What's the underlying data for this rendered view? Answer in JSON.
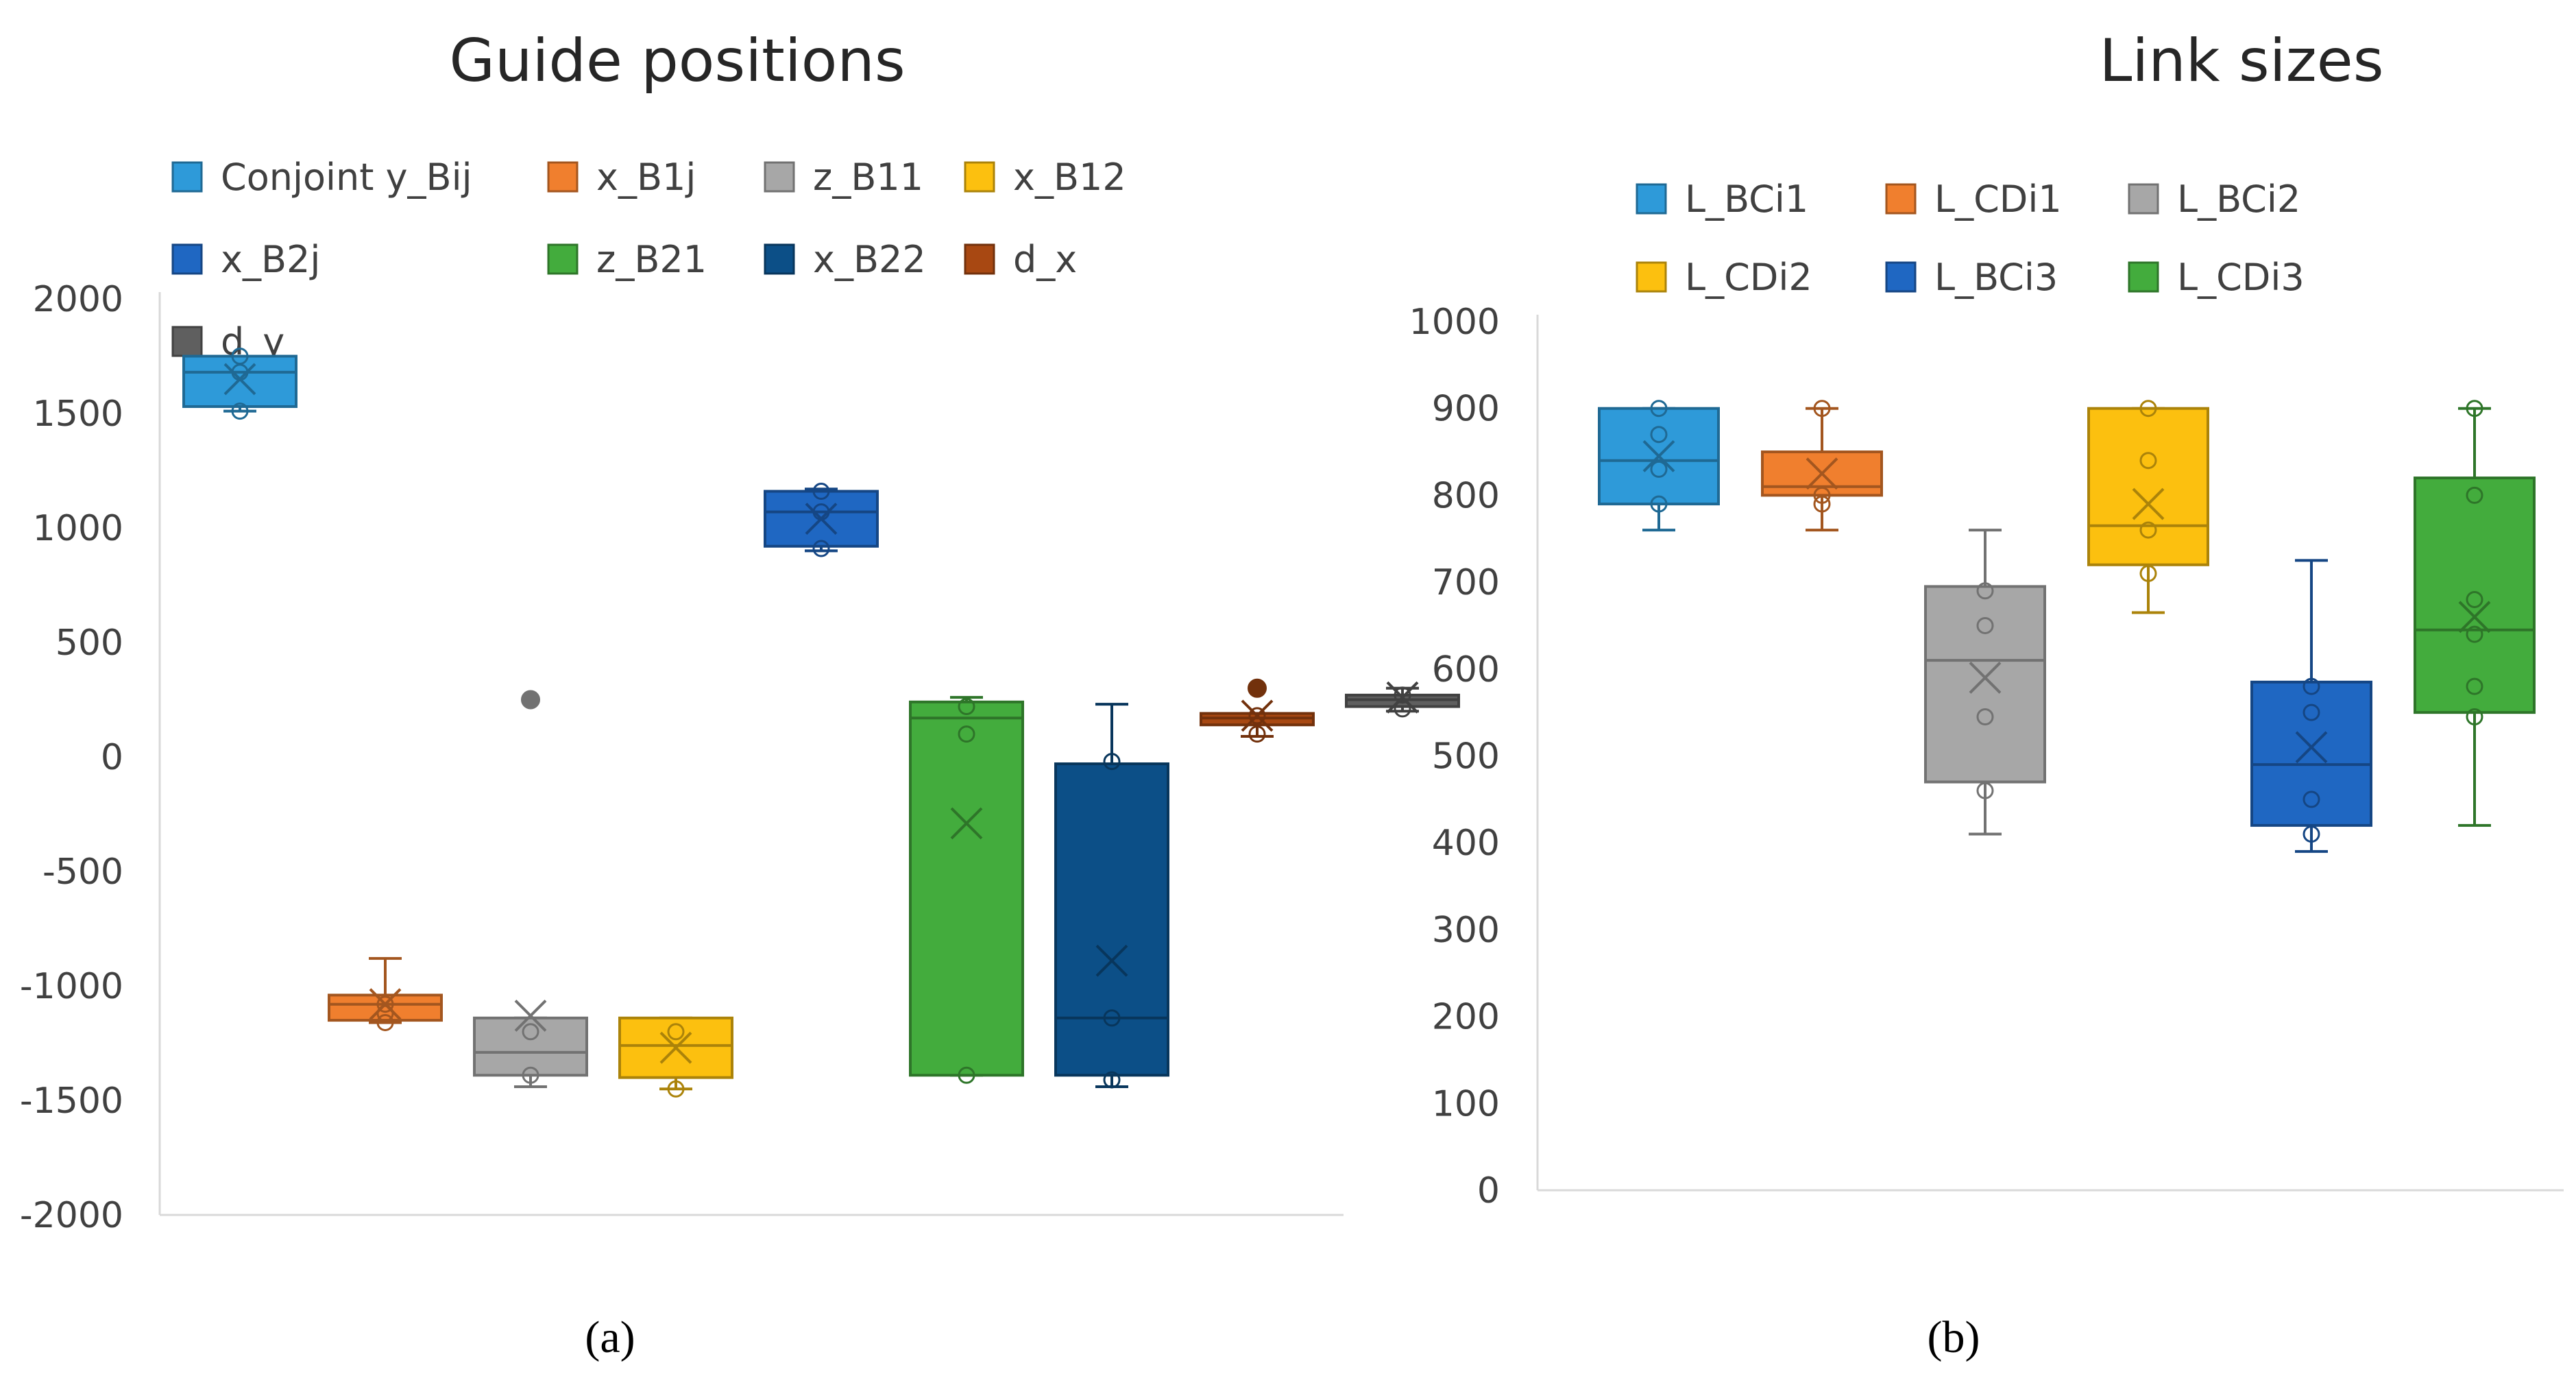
{
  "chart_data": [
    {
      "type": "boxplot",
      "title": "Guide positions",
      "caption": "(a)",
      "ylim": [
        -2000,
        2000
      ],
      "yticks": [
        2000,
        1500,
        1000,
        500,
        0,
        -500,
        -1000,
        -1500,
        -2000
      ],
      "ytick_labels": [
        "2000",
        "1500",
        "1000",
        "500",
        "0",
        "-500",
        "-1000",
        "-1500",
        "-2000"
      ],
      "legend_position": "top",
      "series": [
        {
          "name": "Conjoint y_Bij",
          "color": "#2e9ad9",
          "slot": 0,
          "min": 1510,
          "q1": 1530,
          "median": 1680,
          "q3": 1750,
          "max": 1750,
          "mean": 1650,
          "points": [
            1510,
            1680,
            1750
          ],
          "outliers": []
        },
        {
          "name": "x_B1j",
          "color": "#f07f2e",
          "slot": 1,
          "min": -1160,
          "q1": -1150,
          "median": -1080,
          "q3": -1040,
          "max": -880,
          "mean": -1080,
          "points": [
            -1160,
            -1120,
            -1080
          ],
          "outliers": []
        },
        {
          "name": "z_B11",
          "color": "#a7a7a7",
          "slot": 2,
          "min": -1440,
          "q1": -1390,
          "median": -1290,
          "q3": -1140,
          "max": -1140,
          "mean": -1130,
          "points": [
            -1390,
            -1200
          ],
          "outliers": [
            250
          ]
        },
        {
          "name": "x_B12",
          "color": "#fcc00f",
          "slot": 3,
          "min": -1450,
          "q1": -1400,
          "median": -1260,
          "q3": -1140,
          "max": -1140,
          "mean": -1270,
          "points": [
            -1450,
            -1200
          ],
          "outliers": []
        },
        {
          "name": "x_B2j",
          "color": "#1f67c2",
          "slot": 4,
          "min": 900,
          "q1": 920,
          "median": 1070,
          "q3": 1160,
          "max": 1170,
          "mean": 1040,
          "points": [
            910,
            1070,
            1160
          ],
          "outliers": []
        },
        {
          "name": "z_B21",
          "color": "#43ac3d",
          "slot": 5,
          "min": -1390,
          "q1": -1390,
          "median": 170,
          "q3": 240,
          "max": 260,
          "mean": -290,
          "points": [
            -1390,
            100,
            220
          ],
          "outliers": []
        },
        {
          "name": "x_B22",
          "color": "#0c4f87",
          "slot": 6,
          "min": -1440,
          "q1": -1390,
          "median": -1140,
          "q3": -30,
          "max": 230,
          "mean": -890,
          "points": [
            -1410,
            -1140,
            -20
          ],
          "outliers": []
        },
        {
          "name": "d_x",
          "color": "#a84812",
          "slot": 7,
          "min": 90,
          "q1": 140,
          "median": 170,
          "q3": 190,
          "max": 190,
          "mean": 180,
          "points": [
            100,
            180
          ],
          "outliers": [
            300
          ]
        },
        {
          "name": "d_y",
          "color": "#5f5f5f",
          "slot": 8,
          "min": 200,
          "q1": 220,
          "median": 250,
          "q3": 270,
          "max": 300,
          "mean": 260,
          "points": [
            210,
            270
          ],
          "outliers": []
        }
      ]
    },
    {
      "type": "boxplot",
      "title": "Link sizes",
      "caption": "(b)",
      "ylim": [
        0,
        1000
      ],
      "yticks": [
        1000,
        900,
        800,
        700,
        600,
        500,
        400,
        300,
        200,
        100,
        0
      ],
      "ytick_labels": [
        "1000",
        "900",
        "800",
        "700",
        "600",
        "500",
        "400",
        "300",
        "200",
        "100",
        "0"
      ],
      "legend_position": "top",
      "series": [
        {
          "name": "L_BCi1",
          "color": "#2e9ad9",
          "slot": 0,
          "min": 760,
          "q1": 790,
          "median": 840,
          "q3": 900,
          "max": 900,
          "mean": 845,
          "points": [
            790,
            830,
            870,
            900
          ],
          "outliers": []
        },
        {
          "name": "L_CDi1",
          "color": "#f07f2e",
          "slot": 1,
          "min": 760,
          "q1": 800,
          "median": 810,
          "q3": 850,
          "max": 900,
          "mean": 825,
          "points": [
            790,
            800,
            900
          ],
          "outliers": []
        },
        {
          "name": "L_BCi2",
          "color": "#a7a7a7",
          "slot": 2,
          "min": 410,
          "q1": 470,
          "median": 610,
          "q3": 695,
          "max": 760,
          "mean": 590,
          "points": [
            460,
            545,
            650,
            690
          ],
          "outliers": []
        },
        {
          "name": "L_CDi2",
          "color": "#fcc00f",
          "slot": 3,
          "min": 665,
          "q1": 720,
          "median": 765,
          "q3": 900,
          "max": 900,
          "mean": 790,
          "points": [
            710,
            760,
            840,
            900
          ],
          "outliers": []
        },
        {
          "name": "L_BCi3",
          "color": "#1f67c2",
          "slot": 4,
          "min": 390,
          "q1": 420,
          "median": 490,
          "q3": 585,
          "max": 725,
          "mean": 510,
          "points": [
            410,
            450,
            550,
            580
          ],
          "outliers": []
        },
        {
          "name": "L_CDi3",
          "color": "#43ac3d",
          "slot": 5,
          "min": 420,
          "q1": 550,
          "median": 645,
          "q3": 820,
          "max": 900,
          "mean": 660,
          "points": [
            545,
            580,
            640,
            680,
            800,
            900
          ],
          "outliers": []
        }
      ]
    }
  ]
}
